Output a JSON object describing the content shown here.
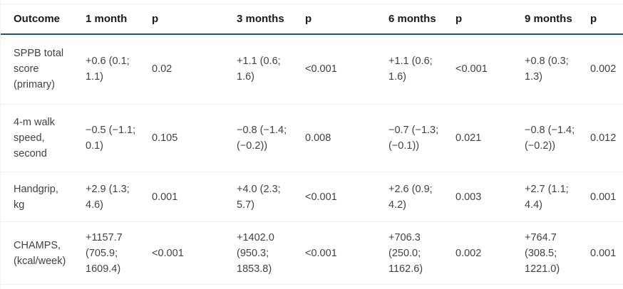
{
  "accent_color": "#16567b",
  "row_separator_color": "#efefef",
  "table": {
    "header": [
      "Outcome",
      "1 month",
      "p",
      "3 months",
      "p",
      "6 months",
      "p",
      "9 months",
      "p"
    ],
    "rows": [
      {
        "cells": [
          "SPPB total\nscore\n(primary)",
          "+0.6 (0.1;\n1.1)",
          "0.02",
          "+1.1 (0.6;\n1.6)",
          "<0.001",
          "+1.1 (0.6;\n1.6)",
          "<0.001",
          "+0.8 (0.3;\n1.3)",
          "0.002"
        ]
      },
      {
        "cells": [
          "4-m walk\nspeed,\nsecond",
          "−0.5 (−1.1;\n0.1)",
          "0.105",
          "−0.8 (−1.4;\n(−0.2))",
          "0.008",
          "−0.7 (−1.3;\n(−0.1))",
          "0.021",
          "−0.8 (−1.4;\n(−0.2))",
          "0.012"
        ]
      },
      {
        "cells": [
          "Handgrip,\nkg",
          "+2.9 (1.3;\n4.6)",
          "0.001",
          "+4.0 (2.3;\n5.7)",
          "<0.001",
          "+2.6 (0.9;\n4.2)",
          "0.003",
          "+2.7 (1.1;\n4.4)",
          "0.001"
        ]
      },
      {
        "cells": [
          "CHAMPS,\n(kcal/week)",
          "+1157.7\n(705.9;\n1609.4)",
          "<0.001",
          "+1402.0\n(950.3;\n1853.8)",
          "<0.001",
          "+706.3\n(250.0;\n1162.6)",
          "0.002",
          "+764.7\n(308.5;\n1221.0)",
          "0.001"
        ]
      }
    ]
  },
  "chart_data": {
    "type": "table",
    "columns": [
      "Outcome",
      "1 month",
      "p",
      "3 months",
      "p",
      "6 months",
      "p",
      "9 months",
      "p"
    ],
    "rows": [
      [
        "SPPB total score (primary)",
        "+0.6 (0.1; 1.1)",
        "0.02",
        "+1.1 (0.6; 1.6)",
        "<0.001",
        "+1.1 (0.6; 1.6)",
        "<0.001",
        "+0.8 (0.3; 1.3)",
        "0.002"
      ],
      [
        "4-m walk speed, second",
        "−0.5 (−1.1; 0.1)",
        "0.105",
        "−0.8 (−1.4; (−0.2))",
        "0.008",
        "−0.7 (−1.3; (−0.1))",
        "0.021",
        "−0.8 (−1.4; (−0.2))",
        "0.012"
      ],
      [
        "Handgrip, kg",
        "+2.9 (1.3; 4.6)",
        "0.001",
        "+4.0 (2.3; 5.7)",
        "<0.001",
        "+2.6 (0.9; 4.2)",
        "0.003",
        "+2.7 (1.1; 4.4)",
        "0.001"
      ],
      [
        "CHAMPS, (kcal/week)",
        "+1157.7 (705.9; 1609.4)",
        "<0.001",
        "+1402.0 (950.3; 1853.8)",
        "<0.001",
        "+706.3 (250.0; 1162.6)",
        "0.002",
        "+764.7 (308.5; 1221.0)",
        "0.001"
      ]
    ]
  }
}
